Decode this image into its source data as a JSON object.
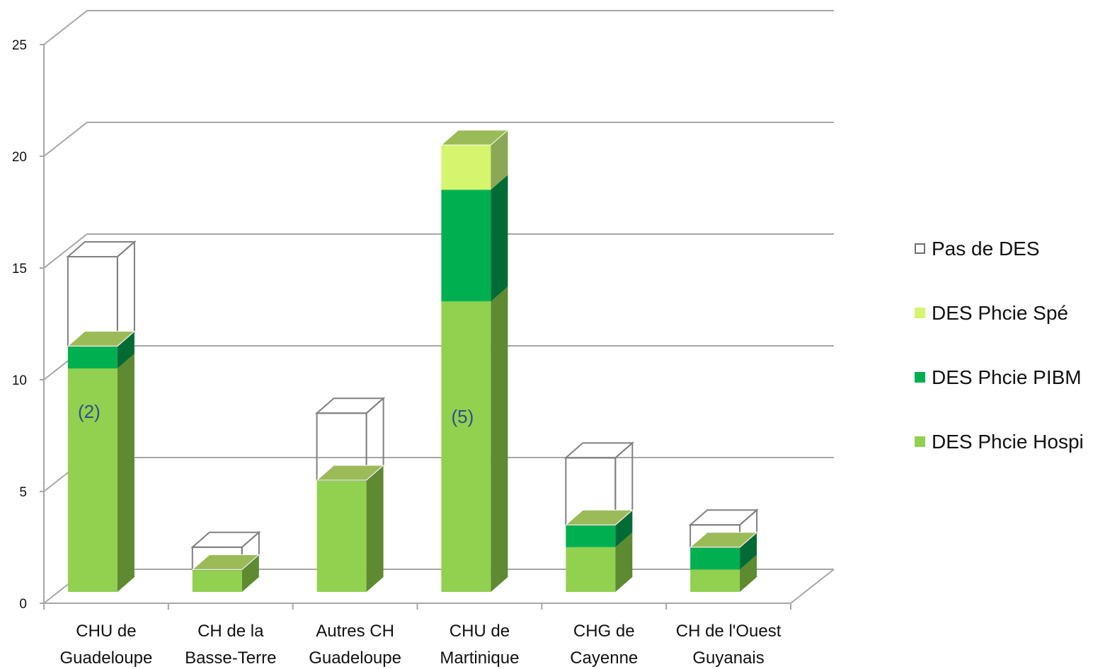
{
  "chart_data": {
    "type": "bar",
    "stacked": true,
    "three_d": true,
    "categories": [
      [
        "CHU de",
        "Guadeloupe"
      ],
      [
        "CH de la",
        "Basse-Terre"
      ],
      [
        "Autres CH",
        "Guadeloupe"
      ],
      [
        "CHU de",
        "Martinique"
      ],
      [
        "CHG de",
        "Cayenne"
      ],
      [
        "CH de l'Ouest",
        "Guyanais"
      ]
    ],
    "series": [
      {
        "name": "DES Phcie Hospi",
        "color": "#92d050",
        "values": [
          10,
          1,
          5,
          13,
          2,
          1
        ]
      },
      {
        "name": "DES Phcie PIBM",
        "color": "#00b050",
        "values": [
          1,
          0,
          0,
          5,
          1,
          1
        ]
      },
      {
        "name": "DES Phcie Spé",
        "color": "#d4f56d",
        "values": [
          0,
          0,
          0,
          2,
          0,
          0
        ]
      },
      {
        "name": "Pas de DES",
        "color": "#ffffff",
        "values": [
          4,
          1,
          3,
          0,
          3,
          1
        ]
      }
    ],
    "data_labels": [
      "(2)",
      "",
      "",
      "(5)",
      "",
      ""
    ],
    "yticks": [
      0,
      5,
      10,
      15,
      20,
      25
    ],
    "ylim": [
      0,
      25
    ],
    "grid": true,
    "legend_position": "right",
    "legend_order": [
      "Pas de DES",
      "DES Phcie Spé",
      "DES Phcie PIBM",
      "DES Phcie Hospi"
    ]
  }
}
